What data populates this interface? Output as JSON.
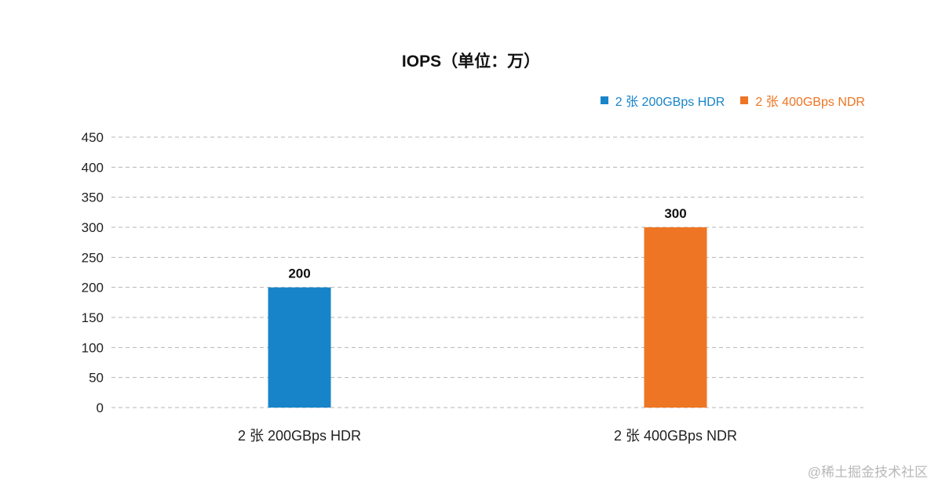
{
  "chart_data": {
    "type": "bar",
    "title": "IOPS（单位：万）",
    "categories": [
      "2 张 200GBps HDR",
      "2 张 400GBps NDR"
    ],
    "series": [
      {
        "name": "2 张 200GBps HDR",
        "values": [
          200,
          null
        ],
        "color": "#1784C9"
      },
      {
        "name": "2 张 400GBps NDR",
        "values": [
          null,
          300
        ],
        "color": "#EE7523"
      }
    ],
    "data_labels": [
      "200",
      "300"
    ],
    "xlabel": "",
    "ylabel": "",
    "ylim": [
      0,
      450
    ],
    "y_ticks": [
      0,
      50,
      100,
      150,
      200,
      250,
      300,
      350,
      400,
      450
    ],
    "grid": true,
    "legend_position": "top-right"
  },
  "watermark": "@稀土掘金技术社区"
}
